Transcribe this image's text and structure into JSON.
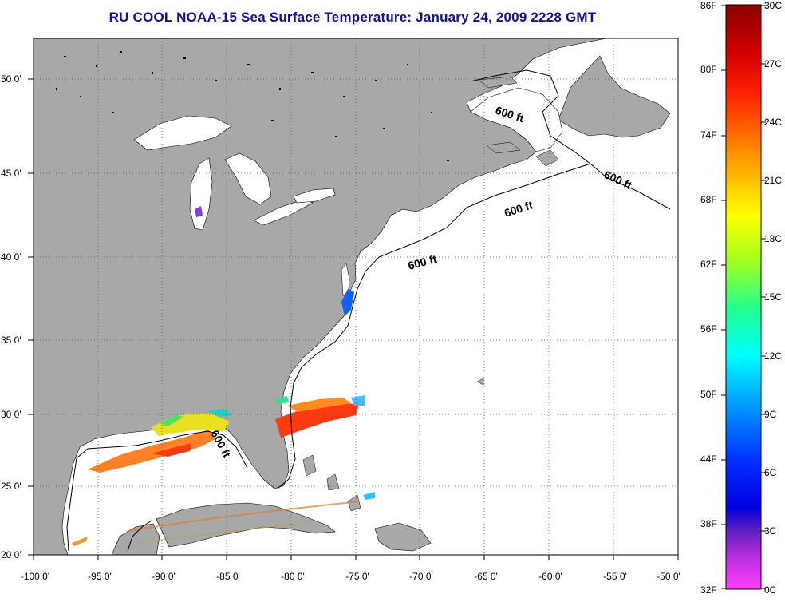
{
  "title": "RU COOL  NOAA-15  Sea Surface Temperature:  January 24, 2009 2228 GMT",
  "map": {
    "lon_range": [
      -100,
      -50
    ],
    "lat_range": [
      20,
      52.5
    ],
    "grid": "dotted",
    "lon_ticks": [
      "-100 0'",
      "-95 0'",
      "-90 0'",
      "-85 0'",
      "-80 0'",
      "-75 0'",
      "-70 0'",
      "-65 0'",
      "-60 0'",
      "-55 0'",
      "-50 0'"
    ],
    "lat_ticks": [
      "20 0'",
      "25 0'",
      "30 0'",
      "35 0'",
      "40 0'",
      "45 0'",
      "50 0'"
    ],
    "land_color": "#a8a8a8",
    "ocean_color": "#ffffff",
    "isobath_label": "600 ft"
  },
  "colorbar": {
    "fahrenheit": [
      "86F",
      "80F",
      "74F",
      "68F",
      "62F",
      "56F",
      "50F",
      "44F",
      "38F",
      "32F"
    ],
    "celsius": [
      "30C",
      "27C",
      "24C",
      "21C",
      "18C",
      "15C",
      "12C",
      "9C",
      "6C",
      "3C",
      "0C"
    ],
    "colors": [
      "#8b0000",
      "#ff0000",
      "#ff8c00",
      "#ffd700",
      "#c8ff00",
      "#00ff80",
      "#00ffff",
      "#00a0ff",
      "#0000ff",
      "#8020c0",
      "#ff40ff"
    ]
  }
}
